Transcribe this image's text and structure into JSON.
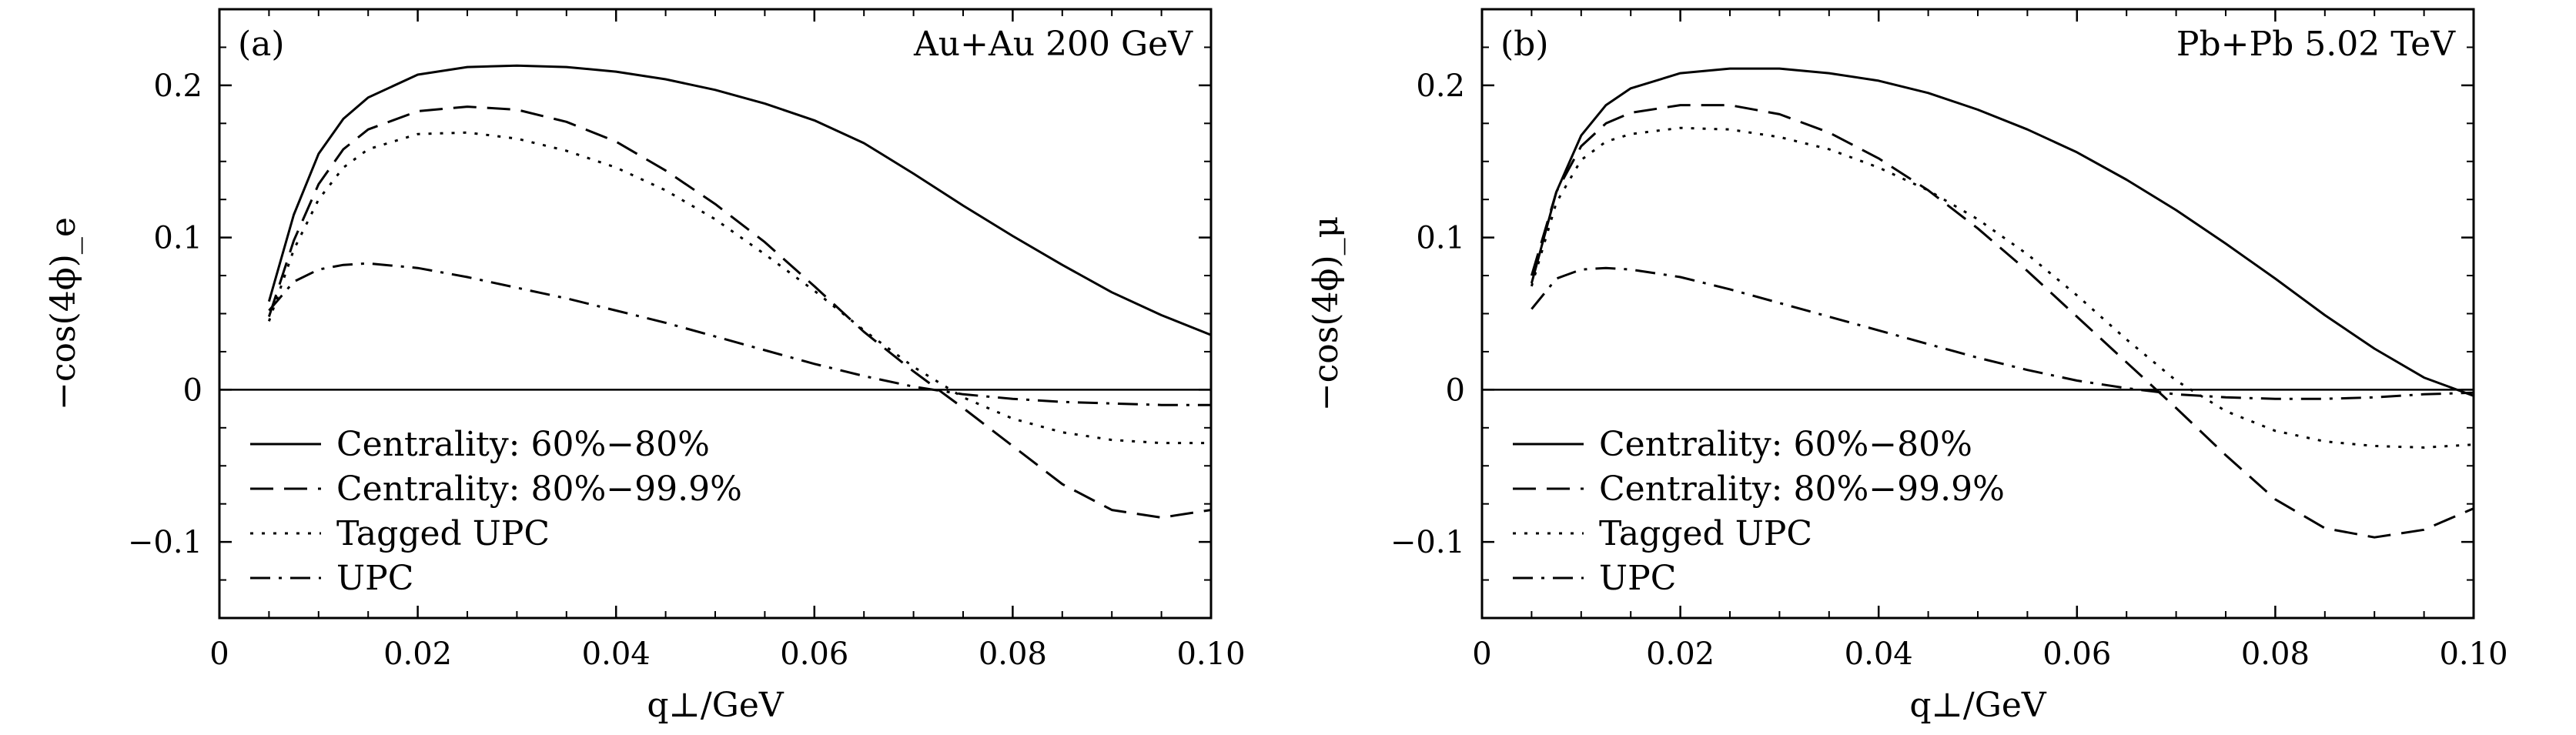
{
  "chart_data": [
    {
      "type": "line",
      "panel_label": "(a)",
      "annotation": "Au+Au 200 GeV",
      "xlabel": "q⊥/GeV",
      "ylabel": "−cos(4ϕ)_e",
      "xlim": [
        0,
        0.1
      ],
      "ylim": [
        -0.15,
        0.25
      ],
      "x_ticks": [
        {
          "value": 0,
          "label": "0"
        },
        {
          "value": 0.02,
          "label": "0.02"
        },
        {
          "value": 0.04,
          "label": "0.04"
        },
        {
          "value": 0.06,
          "label": "0.06"
        },
        {
          "value": 0.08,
          "label": "0.08"
        },
        {
          "value": 0.1,
          "label": "0.10"
        }
      ],
      "y_ticks": [
        {
          "value": -0.1,
          "label": "−0.1"
        },
        {
          "value": 0,
          "label": "0"
        },
        {
          "value": 0.1,
          "label": "0.1"
        },
        {
          "value": 0.2,
          "label": "0.2"
        }
      ],
      "zero_line": true,
      "legend_position": "bottom-left",
      "series": [
        {
          "name": "Centrality: 60%−80%",
          "style": "solid",
          "x": [
            0.005,
            0.0075,
            0.01,
            0.0125,
            0.015,
            0.02,
            0.025,
            0.03,
            0.035,
            0.04,
            0.045,
            0.05,
            0.055,
            0.06,
            0.065,
            0.07,
            0.075,
            0.08,
            0.085,
            0.09,
            0.095,
            0.1
          ],
          "y": [
            0.058,
            0.115,
            0.155,
            0.178,
            0.192,
            0.207,
            0.212,
            0.213,
            0.212,
            0.209,
            0.204,
            0.197,
            0.188,
            0.177,
            0.162,
            0.142,
            0.121,
            0.101,
            0.082,
            0.064,
            0.049,
            0.036
          ]
        },
        {
          "name": "Centrality: 80%−99.9%",
          "style": "dashed",
          "x": [
            0.005,
            0.0075,
            0.01,
            0.0125,
            0.015,
            0.02,
            0.025,
            0.03,
            0.035,
            0.04,
            0.045,
            0.05,
            0.055,
            0.06,
            0.065,
            0.07,
            0.075,
            0.08,
            0.085,
            0.09,
            0.095,
            0.1
          ],
          "y": [
            0.048,
            0.098,
            0.135,
            0.158,
            0.171,
            0.183,
            0.186,
            0.184,
            0.176,
            0.163,
            0.144,
            0.122,
            0.097,
            0.068,
            0.038,
            0.012,
            -0.012,
            -0.037,
            -0.062,
            -0.079,
            -0.084,
            -0.079
          ]
        },
        {
          "name": "Tagged UPC",
          "style": "dotted",
          "x": [
            0.005,
            0.0075,
            0.01,
            0.0125,
            0.015,
            0.02,
            0.025,
            0.03,
            0.035,
            0.04,
            0.045,
            0.05,
            0.055,
            0.06,
            0.065,
            0.07,
            0.075,
            0.08,
            0.085,
            0.09,
            0.095,
            0.1
          ],
          "y": [
            0.045,
            0.092,
            0.125,
            0.146,
            0.158,
            0.168,
            0.169,
            0.165,
            0.157,
            0.146,
            0.131,
            0.112,
            0.089,
            0.065,
            0.039,
            0.015,
            -0.005,
            -0.019,
            -0.028,
            -0.033,
            -0.035,
            -0.035
          ]
        },
        {
          "name": "UPC",
          "style": "dashdot",
          "x": [
            0.005,
            0.0075,
            0.01,
            0.0125,
            0.015,
            0.02,
            0.025,
            0.03,
            0.035,
            0.04,
            0.045,
            0.05,
            0.055,
            0.06,
            0.065,
            0.07,
            0.075,
            0.08,
            0.085,
            0.09,
            0.095,
            0.1
          ],
          "y": [
            0.052,
            0.071,
            0.079,
            0.082,
            0.083,
            0.08,
            0.074,
            0.067,
            0.06,
            0.052,
            0.044,
            0.035,
            0.026,
            0.017,
            0.009,
            0.002,
            -0.003,
            -0.006,
            -0.008,
            -0.009,
            -0.01,
            -0.01
          ]
        }
      ]
    },
    {
      "type": "line",
      "panel_label": "(b)",
      "annotation": "Pb+Pb 5.02 TeV",
      "xlabel": "q⊥/GeV",
      "ylabel": "−cos(4ϕ)_μ",
      "xlim": [
        0,
        0.1
      ],
      "ylim": [
        -0.15,
        0.25
      ],
      "x_ticks": [
        {
          "value": 0,
          "label": "0"
        },
        {
          "value": 0.02,
          "label": "0.02"
        },
        {
          "value": 0.04,
          "label": "0.04"
        },
        {
          "value": 0.06,
          "label": "0.06"
        },
        {
          "value": 0.08,
          "label": "0.08"
        },
        {
          "value": 0.1,
          "label": "0.10"
        }
      ],
      "y_ticks": [
        {
          "value": -0.1,
          "label": "−0.1"
        },
        {
          "value": 0,
          "label": "0"
        },
        {
          "value": 0.1,
          "label": "0.1"
        },
        {
          "value": 0.2,
          "label": "0.2"
        }
      ],
      "zero_line": true,
      "legend_position": "bottom-left",
      "series": [
        {
          "name": "Centrality: 60%−80%",
          "style": "solid",
          "x": [
            0.005,
            0.0075,
            0.01,
            0.0125,
            0.015,
            0.02,
            0.025,
            0.03,
            0.035,
            0.04,
            0.045,
            0.05,
            0.055,
            0.06,
            0.065,
            0.07,
            0.075,
            0.08,
            0.085,
            0.09,
            0.095,
            0.1
          ],
          "y": [
            0.07,
            0.13,
            0.167,
            0.187,
            0.198,
            0.208,
            0.211,
            0.211,
            0.208,
            0.203,
            0.195,
            0.184,
            0.171,
            0.156,
            0.138,
            0.118,
            0.096,
            0.073,
            0.049,
            0.027,
            0.008,
            -0.004
          ]
        },
        {
          "name": "Centrality: 80%−99.9%",
          "style": "dashed",
          "x": [
            0.005,
            0.0075,
            0.01,
            0.0125,
            0.015,
            0.02,
            0.025,
            0.03,
            0.035,
            0.04,
            0.045,
            0.05,
            0.055,
            0.06,
            0.065,
            0.07,
            0.075,
            0.08,
            0.085,
            0.09,
            0.095,
            0.1
          ],
          "y": [
            0.075,
            0.13,
            0.16,
            0.175,
            0.182,
            0.187,
            0.187,
            0.181,
            0.169,
            0.152,
            0.131,
            0.106,
            0.078,
            0.048,
            0.018,
            -0.012,
            -0.043,
            -0.072,
            -0.091,
            -0.097,
            -0.092,
            -0.078
          ]
        },
        {
          "name": "Tagged UPC",
          "style": "dotted",
          "x": [
            0.005,
            0.0075,
            0.01,
            0.0125,
            0.015,
            0.02,
            0.025,
            0.03,
            0.035,
            0.04,
            0.045,
            0.05,
            0.055,
            0.06,
            0.065,
            0.07,
            0.075,
            0.08,
            0.085,
            0.09,
            0.095,
            0.1
          ],
          "y": [
            0.068,
            0.123,
            0.151,
            0.163,
            0.168,
            0.172,
            0.171,
            0.166,
            0.158,
            0.146,
            0.131,
            0.112,
            0.089,
            0.062,
            0.033,
            0.006,
            -0.014,
            -0.027,
            -0.034,
            -0.037,
            -0.038,
            -0.036
          ]
        },
        {
          "name": "UPC",
          "style": "dashdot",
          "x": [
            0.005,
            0.0075,
            0.01,
            0.0125,
            0.015,
            0.02,
            0.025,
            0.03,
            0.035,
            0.04,
            0.045,
            0.05,
            0.055,
            0.06,
            0.065,
            0.07,
            0.075,
            0.08,
            0.085,
            0.09,
            0.095,
            0.1
          ],
          "y": [
            0.053,
            0.073,
            0.079,
            0.08,
            0.079,
            0.074,
            0.066,
            0.057,
            0.048,
            0.039,
            0.03,
            0.021,
            0.013,
            0.006,
            0.001,
            -0.003,
            -0.005,
            -0.006,
            -0.006,
            -0.005,
            -0.003,
            -0.002
          ]
        }
      ]
    }
  ]
}
